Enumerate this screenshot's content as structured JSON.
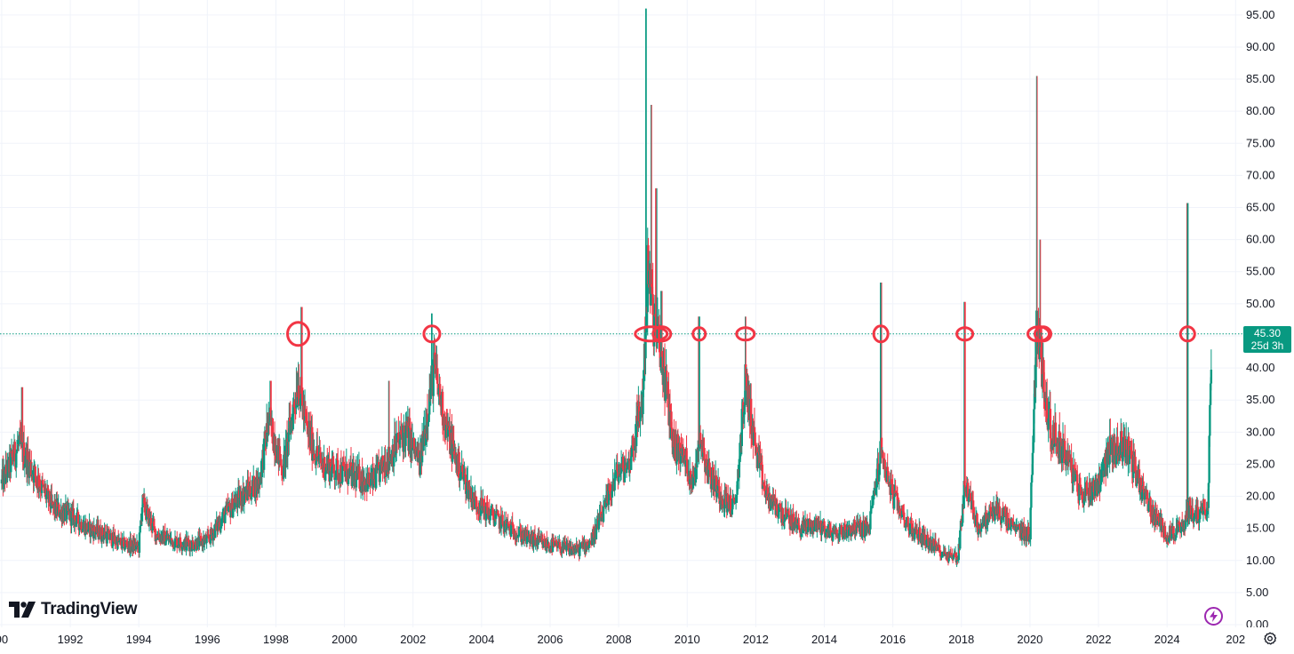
{
  "brand": {
    "name": "TradingView"
  },
  "last_price": {
    "value": "45.30",
    "countdown": "25d 3h",
    "color": "#089981"
  },
  "icons": {
    "flash": "flash-icon",
    "settings": "settings-gear-icon"
  },
  "colors": {
    "up": "#089981",
    "down": "#f23645",
    "marker": "#f23645",
    "grid": "#f0f3fa",
    "price_line": "#089981"
  },
  "chart_data": {
    "type": "candlestick",
    "y_ticks": [
      "0.00",
      "5.00",
      "10.00",
      "15.00",
      "20.00",
      "25.00",
      "30.00",
      "35.00",
      "40.00",
      "45.00",
      "50.00",
      "55.00",
      "60.00",
      "65.00",
      "70.00",
      "75.00",
      "80.00",
      "85.00",
      "90.00",
      "95.00"
    ],
    "x_ticks": [
      "90",
      "1992",
      "1994",
      "1996",
      "1998",
      "2000",
      "2002",
      "2004",
      "2006",
      "2008",
      "2010",
      "2012",
      "2014",
      "2016",
      "2018",
      "2020",
      "2022",
      "2024",
      "202"
    ],
    "ylim": [
      0,
      96.5
    ],
    "xlim": [
      1989.95,
      2026.2
    ],
    "y_scale": "linear",
    "grid": true,
    "horizontal_line": {
      "value": 45.3,
      "style": "dotted"
    },
    "marked_touches": [
      {
        "x": 1998.65,
        "y": 45.3
      },
      {
        "x": 2002.55,
        "y": 45.3
      },
      {
        "x": 2008.95,
        "y": 45.3
      },
      {
        "x": 2010.35,
        "y": 45.3
      },
      {
        "x": 2011.7,
        "y": 45.3
      },
      {
        "x": 2015.65,
        "y": 45.3
      },
      {
        "x": 2018.1,
        "y": 45.3
      },
      {
        "x": 2020.25,
        "y": 45.3
      },
      {
        "x": 2024.6,
        "y": 45.3
      }
    ],
    "anchors": [
      [
        1990.0,
        22
      ],
      [
        1990.5,
        28
      ],
      [
        1991.0,
        23
      ],
      [
        1991.5,
        18
      ],
      [
        1992.0,
        17
      ],
      [
        1992.5,
        15
      ],
      [
        1993.0,
        14
      ],
      [
        1993.5,
        12.5
      ],
      [
        1994.0,
        12
      ],
      [
        1994.1,
        19
      ],
      [
        1994.5,
        14
      ],
      [
        1995.0,
        13
      ],
      [
        1995.5,
        12.5
      ],
      [
        1996.0,
        13
      ],
      [
        1996.5,
        17
      ],
      [
        1997.0,
        20
      ],
      [
        1997.5,
        22
      ],
      [
        1997.8,
        32
      ],
      [
        1998.2,
        24
      ],
      [
        1998.65,
        38
      ],
      [
        1998.9,
        30
      ],
      [
        1999.3,
        25
      ],
      [
        1999.8,
        24
      ],
      [
        2000.3,
        23
      ],
      [
        2000.8,
        22
      ],
      [
        2001.3,
        26
      ],
      [
        2001.8,
        30
      ],
      [
        2002.2,
        25
      ],
      [
        2002.6,
        40
      ],
      [
        2003.0,
        30
      ],
      [
        2003.3,
        25
      ],
      [
        2003.8,
        19
      ],
      [
        2004.3,
        17
      ],
      [
        2004.8,
        15
      ],
      [
        2005.3,
        13.5
      ],
      [
        2005.8,
        12.5
      ],
      [
        2006.3,
        12
      ],
      [
        2006.8,
        11.5
      ],
      [
        2007.2,
        13
      ],
      [
        2007.6,
        18
      ],
      [
        2007.9,
        23
      ],
      [
        2008.3,
        25
      ],
      [
        2008.7,
        35
      ],
      [
        2008.85,
        55
      ],
      [
        2009.0,
        48
      ],
      [
        2009.3,
        40
      ],
      [
        2009.6,
        28
      ],
      [
        2009.9,
        26
      ],
      [
        2010.2,
        22
      ],
      [
        2010.35,
        30
      ],
      [
        2010.6,
        24
      ],
      [
        2011.0,
        20
      ],
      [
        2011.4,
        18
      ],
      [
        2011.7,
        38
      ],
      [
        2012.0,
        27
      ],
      [
        2012.3,
        20
      ],
      [
        2012.8,
        17
      ],
      [
        2013.3,
        15
      ],
      [
        2013.8,
        15.5
      ],
      [
        2014.3,
        14
      ],
      [
        2014.8,
        15
      ],
      [
        2015.3,
        15
      ],
      [
        2015.65,
        27
      ],
      [
        2016.0,
        20
      ],
      [
        2016.5,
        15
      ],
      [
        2017.0,
        13
      ],
      [
        2017.5,
        11
      ],
      [
        2017.9,
        10.5
      ],
      [
        2018.1,
        22
      ],
      [
        2018.5,
        15
      ],
      [
        2019.0,
        18
      ],
      [
        2019.5,
        15
      ],
      [
        2020.0,
        14
      ],
      [
        2020.2,
        48
      ],
      [
        2020.35,
        40
      ],
      [
        2020.6,
        30
      ],
      [
        2021.0,
        27
      ],
      [
        2021.5,
        20
      ],
      [
        2022.0,
        22
      ],
      [
        2022.3,
        27
      ],
      [
        2022.8,
        28
      ],
      [
        2023.2,
        22
      ],
      [
        2023.6,
        17
      ],
      [
        2024.0,
        14
      ],
      [
        2024.5,
        15
      ],
      [
        2024.6,
        18
      ],
      [
        2024.9,
        17
      ],
      [
        2025.2,
        19
      ],
      [
        2025.3,
        45.3
      ]
    ],
    "spikes": [
      [
        1990.6,
        37
      ],
      [
        1997.85,
        38
      ],
      [
        1998.75,
        49.5
      ],
      [
        2001.3,
        38
      ],
      [
        2002.55,
        48.5
      ],
      [
        2008.8,
        96
      ],
      [
        2008.95,
        81
      ],
      [
        2009.1,
        68
      ],
      [
        2009.25,
        52
      ],
      [
        2010.35,
        48
      ],
      [
        2011.7,
        48
      ],
      [
        2015.65,
        53.3
      ],
      [
        2018.1,
        50.3
      ],
      [
        2020.2,
        85.5
      ],
      [
        2020.3,
        60
      ],
      [
        2024.6,
        65.7
      ]
    ]
  }
}
